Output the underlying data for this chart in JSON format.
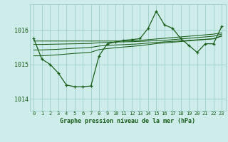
{
  "title": "Graphe pression niveau de la mer (hPa)",
  "bg_color": "#ceecea",
  "grid_color": "#9ecdc9",
  "line_color": "#1a5e1a",
  "text_color": "#1a5e1a",
  "xlim": [
    -0.5,
    23.5
  ],
  "ylim": [
    1013.65,
    1016.75
  ],
  "yticks": [
    1014,
    1015,
    1016
  ],
  "xticks": [
    0,
    1,
    2,
    3,
    4,
    5,
    6,
    7,
    8,
    9,
    10,
    11,
    12,
    13,
    14,
    15,
    16,
    17,
    18,
    19,
    20,
    21,
    22,
    23
  ],
  "series": {
    "main": [
      1015.75,
      1015.15,
      1015.0,
      1014.75,
      1014.4,
      1014.35,
      1014.35,
      1014.37,
      1015.25,
      1015.6,
      1015.65,
      1015.7,
      1015.72,
      1015.75,
      1016.05,
      1016.55,
      1016.15,
      1016.05,
      1015.75,
      1015.55,
      1015.35,
      1015.6,
      1015.6,
      1016.1
    ],
    "trend1": [
      1015.68,
      1015.68,
      1015.68,
      1015.68,
      1015.68,
      1015.68,
      1015.68,
      1015.68,
      1015.68,
      1015.68,
      1015.68,
      1015.68,
      1015.68,
      1015.7,
      1015.72,
      1015.74,
      1015.76,
      1015.78,
      1015.8,
      1015.82,
      1015.84,
      1015.86,
      1015.88,
      1015.92
    ],
    "trend2": [
      1015.58,
      1015.58,
      1015.585,
      1015.59,
      1015.595,
      1015.6,
      1015.605,
      1015.61,
      1015.63,
      1015.64,
      1015.65,
      1015.655,
      1015.66,
      1015.67,
      1015.68,
      1015.69,
      1015.7,
      1015.72,
      1015.74,
      1015.76,
      1015.78,
      1015.8,
      1015.82,
      1015.88
    ],
    "trend3": [
      1015.42,
      1015.42,
      1015.43,
      1015.44,
      1015.455,
      1015.47,
      1015.48,
      1015.495,
      1015.535,
      1015.55,
      1015.565,
      1015.575,
      1015.585,
      1015.6,
      1015.62,
      1015.64,
      1015.655,
      1015.67,
      1015.685,
      1015.7,
      1015.715,
      1015.73,
      1015.745,
      1015.82
    ],
    "trend4": [
      1015.25,
      1015.25,
      1015.265,
      1015.28,
      1015.3,
      1015.32,
      1015.335,
      1015.355,
      1015.43,
      1015.46,
      1015.485,
      1015.505,
      1015.525,
      1015.545,
      1015.575,
      1015.605,
      1015.625,
      1015.645,
      1015.665,
      1015.685,
      1015.705,
      1015.725,
      1015.745,
      1015.835
    ]
  }
}
